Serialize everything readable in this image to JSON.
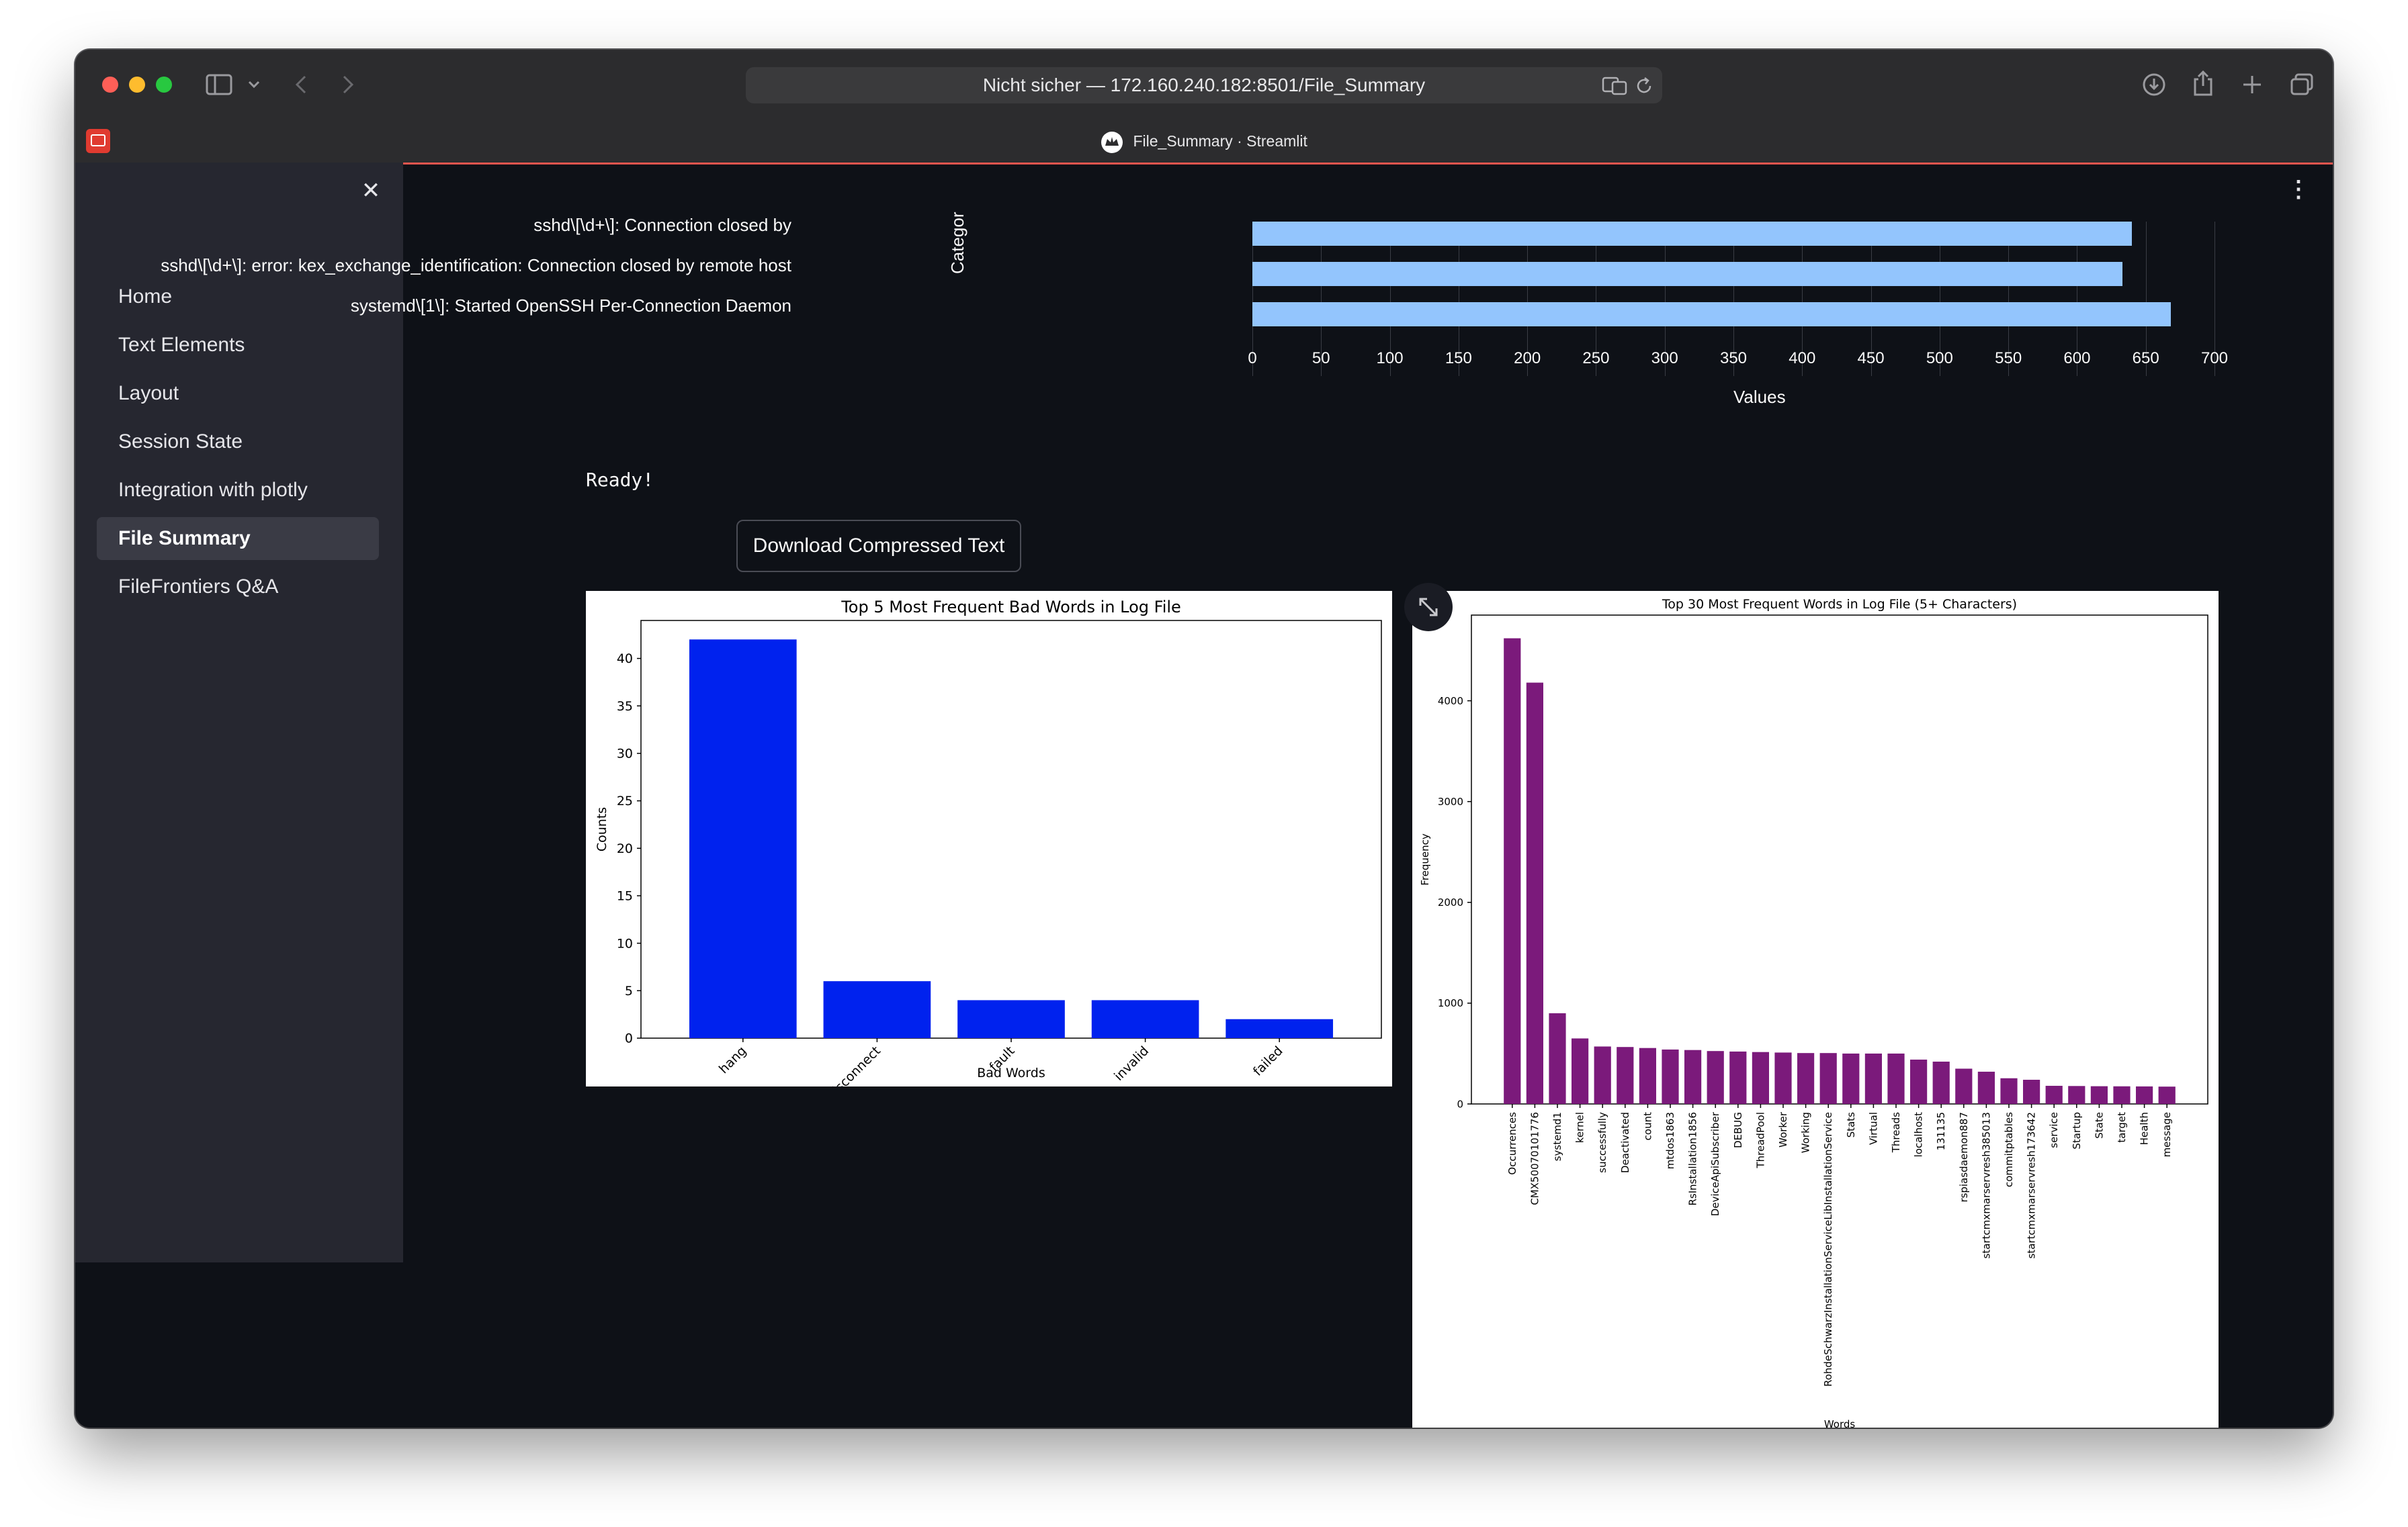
{
  "browser": {
    "url_prefix": "Nicht sicher —",
    "url": "172.160.240.182:8501/File_Summary",
    "tab_title": "File_Summary · Streamlit"
  },
  "sidebar": {
    "close_label": "✕",
    "items": [
      {
        "label": "Home"
      },
      {
        "label": "Text Elements"
      },
      {
        "label": "Layout"
      },
      {
        "label": "Session State"
      },
      {
        "label": "Integration with plotly"
      },
      {
        "label": "File Summary",
        "active": true
      },
      {
        "label": "FileFrontiers Q&A"
      }
    ]
  },
  "main": {
    "status_text": "Ready!",
    "download_button": "Download Compressed Text",
    "menu_icon": "⋮"
  },
  "chart_data": [
    {
      "type": "bar",
      "orientation": "horizontal",
      "categories": [
        "sshd\\[\\d+\\]: Connection closed by",
        "sshd\\[\\d+\\]: error: kex_exchange_identification: Connection closed by remote host",
        "systemd\\[1\\]: Started OpenSSH Per-Connection Daemon"
      ],
      "values": [
        640,
        633,
        668
      ],
      "xlabel": "Values",
      "ylabel": "Categor",
      "xlim": [
        0,
        700
      ],
      "xticks": [
        0,
        50,
        100,
        150,
        200,
        250,
        300,
        350,
        400,
        450,
        500,
        550,
        600,
        650,
        700
      ],
      "color": "#93c5fd"
    },
    {
      "type": "bar",
      "title": "Top 5 Most Frequent Bad Words in Log File",
      "categories": [
        "hang",
        "disconnect",
        "fault",
        "invalid",
        "failed"
      ],
      "values": [
        42,
        6,
        4,
        4,
        2
      ],
      "xlabel": "Bad Words",
      "ylabel": "Counts",
      "ylim": [
        0,
        44
      ],
      "yticks": [
        0,
        5,
        10,
        15,
        20,
        25,
        30,
        35,
        40
      ],
      "color": "#0022ee"
    },
    {
      "type": "bar",
      "title": "Top 30 Most Frequent Words in Log File (5+ Characters)",
      "categories": [
        "Occurrences",
        "CMX50070101776",
        "systemd1",
        "kernel",
        "successfully",
        "Deactivated",
        "count",
        "mtdos1863",
        "RsInstallation1856",
        "DeviceApiSubscriber",
        "DEBUG",
        "ThreadPool",
        "Worker",
        "Working",
        "RohdeSchwarzInstallationServiceLibInstallationService",
        "Stats",
        "Virtual",
        "Threads",
        "localhost",
        "131135",
        "rspiasdaemon887",
        "startcmxmarservresh385013",
        "commitptables",
        "startcmxmarservresh173642",
        "service",
        "Startup",
        "State",
        "target",
        "Health",
        "message"
      ],
      "values": [
        4620,
        4180,
        900,
        650,
        570,
        565,
        555,
        540,
        535,
        525,
        520,
        515,
        510,
        505,
        505,
        500,
        500,
        500,
        440,
        420,
        350,
        320,
        255,
        240,
        180,
        178,
        176,
        175,
        174,
        172
      ],
      "xlabel": "Words",
      "ylabel": "Frequency",
      "ylim": [
        0,
        4850
      ],
      "yticks": [
        0,
        1000,
        2000,
        3000,
        4000
      ],
      "color": "#7b1a7b"
    }
  ]
}
